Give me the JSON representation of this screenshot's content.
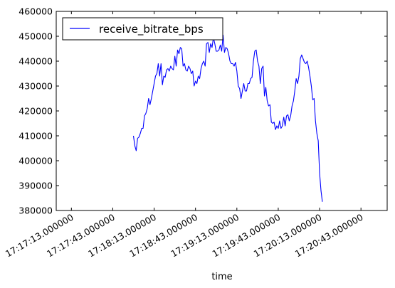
{
  "chart_data": {
    "type": "line",
    "xlabel": "time",
    "ylabel": "",
    "ylim": [
      380000,
      460000
    ],
    "xlim": [
      "17:17:02.000000",
      "17:21:02.000000"
    ],
    "grid": false,
    "legend_position": "top-left",
    "yticks": [
      {
        "value": 380000,
        "label": "380000"
      },
      {
        "value": 390000,
        "label": "390000"
      },
      {
        "value": 400000,
        "label": "400000"
      },
      {
        "value": 410000,
        "label": "410000"
      },
      {
        "value": 420000,
        "label": "420000"
      },
      {
        "value": 430000,
        "label": "430000"
      },
      {
        "value": 440000,
        "label": "440000"
      },
      {
        "value": 450000,
        "label": "450000"
      },
      {
        "value": 460000,
        "label": "460000"
      }
    ],
    "xticks": [
      {
        "time": "17:17:13.000000",
        "label": "17:17:13.000000"
      },
      {
        "time": "17:17:43.000000",
        "label": "17:17:43.000000"
      },
      {
        "time": "17:18:13.000000",
        "label": "17:18:13.000000"
      },
      {
        "time": "17:18:43.000000",
        "label": "17:18:43.000000"
      },
      {
        "time": "17:19:13.000000",
        "label": "17:19:13.000000"
      },
      {
        "time": "17:19:43.000000",
        "label": "17:19:43.000000"
      },
      {
        "time": "17:20:13.000000",
        "label": "17:20:13.000000"
      },
      {
        "time": "17:20:43.000000",
        "label": "17:20:43.000000"
      }
    ],
    "series": [
      {
        "name": "receive_bitrate_bps",
        "color": "#0000ff",
        "points": [
          [
            "17:17:58",
            410000
          ],
          [
            "17:17:59",
            406000
          ],
          [
            "17:18:00",
            404000
          ],
          [
            "17:18:01",
            409000
          ],
          [
            "17:18:02",
            409500
          ],
          [
            "17:18:03",
            411000
          ],
          [
            "17:18:04",
            413000
          ],
          [
            "17:18:05",
            413000
          ],
          [
            "17:18:06",
            418000
          ],
          [
            "17:18:07",
            419000
          ],
          [
            "17:18:08",
            421000
          ],
          [
            "17:18:09",
            425000
          ],
          [
            "17:18:10",
            422500
          ],
          [
            "17:18:11",
            425000
          ],
          [
            "17:18:12",
            428000
          ],
          [
            "17:18:13",
            431000
          ],
          [
            "17:18:14",
            434000
          ],
          [
            "17:18:15",
            435000
          ],
          [
            "17:18:16",
            439000
          ],
          [
            "17:18:17",
            434000
          ],
          [
            "17:18:18",
            439000
          ],
          [
            "17:18:19",
            430500
          ],
          [
            "17:18:20",
            434000
          ],
          [
            "17:18:21",
            433500
          ],
          [
            "17:18:22",
            436500
          ],
          [
            "17:18:23",
            437000
          ],
          [
            "17:18:24",
            436000
          ],
          [
            "17:18:25",
            438000
          ],
          [
            "17:18:26",
            437000
          ],
          [
            "17:18:27",
            436500
          ],
          [
            "17:18:28",
            442000
          ],
          [
            "17:18:29",
            438000
          ],
          [
            "17:18:30",
            444500
          ],
          [
            "17:18:31",
            443000
          ],
          [
            "17:18:32",
            445500
          ],
          [
            "17:18:33",
            445000
          ],
          [
            "17:18:34",
            438000
          ],
          [
            "17:18:35",
            439000
          ],
          [
            "17:18:36",
            436500
          ],
          [
            "17:18:37",
            436000
          ],
          [
            "17:18:38",
            438000
          ],
          [
            "17:18:39",
            437000
          ],
          [
            "17:18:40",
            435000
          ],
          [
            "17:18:41",
            436000
          ],
          [
            "17:18:42",
            430000
          ],
          [
            "17:18:43",
            432000
          ],
          [
            "17:18:44",
            431000
          ],
          [
            "17:18:45",
            434000
          ],
          [
            "17:18:46",
            433000
          ],
          [
            "17:18:47",
            437000
          ],
          [
            "17:18:48",
            439000
          ],
          [
            "17:18:49",
            440000
          ],
          [
            "17:18:50",
            438000
          ],
          [
            "17:18:51",
            447000
          ],
          [
            "17:18:52",
            447500
          ],
          [
            "17:18:53",
            443500
          ],
          [
            "17:18:54",
            447000
          ],
          [
            "17:18:55",
            445500
          ],
          [
            "17:18:56",
            449500
          ],
          [
            "17:18:57",
            447000
          ],
          [
            "17:18:58",
            444000
          ],
          [
            "17:18:59",
            444000
          ],
          [
            "17:19:00",
            444500
          ],
          [
            "17:19:01",
            446500
          ],
          [
            "17:19:02",
            444000
          ],
          [
            "17:19:03",
            450500
          ],
          [
            "17:19:04",
            443500
          ],
          [
            "17:19:05",
            445500
          ],
          [
            "17:19:06",
            445000
          ],
          [
            "17:19:07",
            443000
          ],
          [
            "17:19:08",
            440000
          ],
          [
            "17:19:09",
            439000
          ],
          [
            "17:19:10",
            439000
          ],
          [
            "17:19:11",
            438000
          ],
          [
            "17:19:12",
            439500
          ],
          [
            "17:19:13",
            436000
          ],
          [
            "17:19:14",
            430000
          ],
          [
            "17:19:15",
            429000
          ],
          [
            "17:19:16",
            425000
          ],
          [
            "17:19:17",
            428000
          ],
          [
            "17:19:18",
            431000
          ],
          [
            "17:19:19",
            428000
          ],
          [
            "17:19:20",
            428000
          ],
          [
            "17:19:21",
            431000
          ],
          [
            "17:19:22",
            431000
          ],
          [
            "17:19:23",
            433000
          ],
          [
            "17:19:24",
            433500
          ],
          [
            "17:19:25",
            440000
          ],
          [
            "17:19:26",
            444000
          ],
          [
            "17:19:27",
            444500
          ],
          [
            "17:19:28",
            440000
          ],
          [
            "17:19:29",
            438000
          ],
          [
            "17:19:30",
            431000
          ],
          [
            "17:19:31",
            437000
          ],
          [
            "17:19:32",
            438000
          ],
          [
            "17:19:33",
            426000
          ],
          [
            "17:19:34",
            429500
          ],
          [
            "17:19:35",
            424000
          ],
          [
            "17:19:36",
            422000
          ],
          [
            "17:19:37",
            422500
          ],
          [
            "17:19:38",
            415500
          ],
          [
            "17:19:39",
            415000
          ],
          [
            "17:19:40",
            415500
          ],
          [
            "17:19:41",
            412500
          ],
          [
            "17:19:42",
            414000
          ],
          [
            "17:19:43",
            413000
          ],
          [
            "17:19:44",
            416000
          ],
          [
            "17:19:45",
            413000
          ],
          [
            "17:19:46",
            414000
          ],
          [
            "17:19:47",
            417500
          ],
          [
            "17:19:48",
            414000
          ],
          [
            "17:19:49",
            418000
          ],
          [
            "17:19:50",
            418500
          ],
          [
            "17:19:51",
            416000
          ],
          [
            "17:19:52",
            418000
          ],
          [
            "17:19:53",
            422000
          ],
          [
            "17:19:54",
            424000
          ],
          [
            "17:19:55",
            428000
          ],
          [
            "17:19:56",
            433000
          ],
          [
            "17:19:57",
            431000
          ],
          [
            "17:19:58",
            434000
          ],
          [
            "17:19:59",
            441000
          ],
          [
            "17:20:00",
            442500
          ],
          [
            "17:20:01",
            441000
          ],
          [
            "17:20:02",
            439500
          ],
          [
            "17:20:03",
            439000
          ],
          [
            "17:20:04",
            440000
          ],
          [
            "17:20:05",
            437500
          ],
          [
            "17:20:06",
            434000
          ],
          [
            "17:20:07",
            430000
          ],
          [
            "17:20:08",
            424500
          ],
          [
            "17:20:09",
            425000
          ],
          [
            "17:20:10",
            416000
          ],
          [
            "17:20:11",
            411000
          ],
          [
            "17:20:12",
            408000
          ],
          [
            "17:20:13",
            395000
          ],
          [
            "17:20:14",
            388000
          ],
          [
            "17:20:15",
            383500
          ]
        ]
      }
    ]
  }
}
